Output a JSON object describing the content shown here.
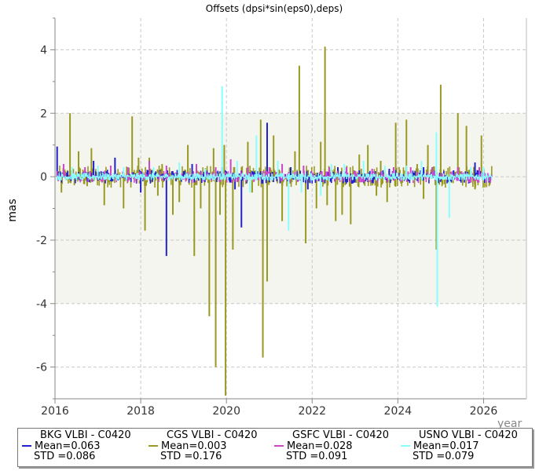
{
  "chart_data": {
    "type": "bar",
    "title": "Offsets (dpsi*sin(eps0),deps)",
    "xlabel": "year",
    "ylabel": "mas",
    "xlim": [
      2016,
      2027
    ],
    "ylim": [
      -7,
      5
    ],
    "xticks": [
      2016,
      2018,
      2020,
      2022,
      2024,
      2026
    ],
    "yticks": [
      4,
      2,
      0,
      -2,
      -4,
      -6
    ],
    "grid": true,
    "shaded_band": [
      -4,
      2
    ],
    "legend_position": "bottom",
    "series": [
      {
        "name": "BKG VLBI - C0420",
        "color": "#2222cc",
        "mean": "Mean=0.063",
        "std": "STD =0.086",
        "points": [
          [
            2016.05,
            0.95
          ],
          [
            2016.9,
            0.5
          ],
          [
            2017.4,
            0.6
          ],
          [
            2018.0,
            -0.5
          ],
          [
            2018.6,
            -2.5
          ],
          [
            2019.2,
            0.4
          ],
          [
            2019.9,
            0.3
          ],
          [
            2020.2,
            -0.4
          ],
          [
            2020.35,
            -1.6
          ],
          [
            2020.95,
            1.7
          ],
          [
            2021.5,
            0.3
          ],
          [
            2021.9,
            -0.4
          ],
          [
            2022.6,
            0.3
          ],
          [
            2023.1,
            0.2
          ],
          [
            2023.8,
            0.25
          ],
          [
            2024.6,
            0.3
          ],
          [
            2025.3,
            0.2
          ],
          [
            2025.8,
            0.45
          ]
        ]
      },
      {
        "name": "CGS VLBI - C0420",
        "color": "#999922",
        "mean": "Mean=0.003",
        "std": "STD =0.176",
        "points": [
          [
            2016.15,
            -0.5
          ],
          [
            2016.35,
            2.0
          ],
          [
            2016.55,
            0.8
          ],
          [
            2016.75,
            -0.3
          ],
          [
            2016.85,
            0.9
          ],
          [
            2017.15,
            -0.9
          ],
          [
            2017.6,
            -1.0
          ],
          [
            2017.8,
            1.9
          ],
          [
            2017.95,
            0.6
          ],
          [
            2018.1,
            -1.7
          ],
          [
            2018.2,
            0.6
          ],
          [
            2018.4,
            -0.6
          ],
          [
            2018.5,
            0.4
          ],
          [
            2018.75,
            -1.2
          ],
          [
            2018.9,
            -0.8
          ],
          [
            2019.1,
            1.0
          ],
          [
            2019.25,
            -2.5
          ],
          [
            2019.4,
            -1.0
          ],
          [
            2019.6,
            -4.4
          ],
          [
            2019.7,
            0.9
          ],
          [
            2019.75,
            -6.0
          ],
          [
            2019.85,
            -1.2
          ],
          [
            2019.95,
            1.0
          ],
          [
            2019.98,
            -6.9
          ],
          [
            2020.15,
            -2.3
          ],
          [
            2020.5,
            1.1
          ],
          [
            2020.6,
            -0.5
          ],
          [
            2020.8,
            1.8
          ],
          [
            2020.85,
            -5.7
          ],
          [
            2020.95,
            -3.3
          ],
          [
            2021.1,
            1.3
          ],
          [
            2021.3,
            -1.4
          ],
          [
            2021.6,
            0.8
          ],
          [
            2021.7,
            3.5
          ],
          [
            2021.85,
            -2.1
          ],
          [
            2022.1,
            -1.0
          ],
          [
            2022.2,
            1.1
          ],
          [
            2022.3,
            4.1
          ],
          [
            2022.35,
            -0.9
          ],
          [
            2022.55,
            -1.4
          ],
          [
            2022.7,
            -1.2
          ],
          [
            2022.9,
            -1.5
          ],
          [
            2023.1,
            0.7
          ],
          [
            2023.3,
            1.0
          ],
          [
            2023.5,
            -0.6
          ],
          [
            2023.6,
            0.5
          ],
          [
            2023.75,
            -0.8
          ],
          [
            2023.95,
            1.7
          ],
          [
            2024.2,
            1.8
          ],
          [
            2024.45,
            0.4
          ],
          [
            2024.6,
            -0.7
          ],
          [
            2024.7,
            1.0
          ],
          [
            2024.9,
            -2.3
          ],
          [
            2025.0,
            2.9
          ],
          [
            2025.4,
            2.0
          ],
          [
            2025.6,
            1.6
          ],
          [
            2025.8,
            -0.4
          ],
          [
            2025.95,
            1.3
          ]
        ]
      },
      {
        "name": "GSFC VLBI - C0420",
        "color": "#cc44cc",
        "mean": "Mean=0.028",
        "std": "STD =0.091",
        "points": [
          [
            2016.2,
            0.4
          ],
          [
            2016.7,
            0.3
          ],
          [
            2017.3,
            0.35
          ],
          [
            2017.7,
            0.3
          ],
          [
            2018.2,
            0.5
          ],
          [
            2018.6,
            0.35
          ],
          [
            2019.3,
            0.4
          ],
          [
            2019.75,
            0.3
          ],
          [
            2020.1,
            0.55
          ],
          [
            2020.5,
            0.3
          ],
          [
            2021.0,
            0.3
          ],
          [
            2021.3,
            0.4
          ],
          [
            2021.8,
            0.35
          ],
          [
            2022.4,
            0.3
          ],
          [
            2022.8,
            0.3
          ],
          [
            2023.4,
            0.25
          ],
          [
            2023.9,
            0.3
          ],
          [
            2024.3,
            0.3
          ],
          [
            2024.8,
            0.3
          ],
          [
            2025.4,
            0.3
          ],
          [
            2025.9,
            0.3
          ]
        ]
      },
      {
        "name": "USNO VLBI - C0420",
        "color": "#88ffff",
        "mean": "Mean=0.017",
        "std": "STD =0.079",
        "points": [
          [
            2016.4,
            0.3
          ],
          [
            2017.0,
            0.35
          ],
          [
            2017.6,
            0.3
          ],
          [
            2018.3,
            0.3
          ],
          [
            2018.9,
            0.45
          ],
          [
            2019.5,
            0.25
          ],
          [
            2019.9,
            2.85
          ],
          [
            2020.25,
            0.5
          ],
          [
            2020.55,
            -0.5
          ],
          [
            2020.7,
            1.3
          ],
          [
            2021.2,
            0.5
          ],
          [
            2021.45,
            -1.7
          ],
          [
            2021.75,
            -0.5
          ],
          [
            2022.2,
            -0.6
          ],
          [
            2022.45,
            0.4
          ],
          [
            2022.75,
            0.4
          ],
          [
            2023.2,
            0.5
          ],
          [
            2023.7,
            0.35
          ],
          [
            2024.2,
            0.35
          ],
          [
            2024.55,
            0.5
          ],
          [
            2024.92,
            -4.1
          ],
          [
            2024.9,
            1.4
          ],
          [
            2025.2,
            -1.3
          ],
          [
            2025.7,
            0.3
          ],
          [
            2026.0,
            0.3
          ]
        ]
      }
    ]
  }
}
